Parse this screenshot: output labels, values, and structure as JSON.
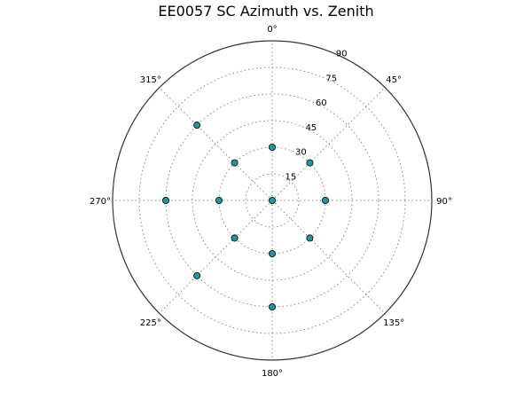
{
  "chart_data": {
    "type": "scatter",
    "projection": "polar",
    "title": "EE0057 SC Azimuth vs. Zenith",
    "theta_direction": "clockwise",
    "theta_zero": "top",
    "theta_ticks": [
      0,
      45,
      90,
      135,
      180,
      225,
      270,
      315
    ],
    "theta_tick_labels": [
      "0°",
      "45°",
      "90°",
      "135°",
      "180°",
      "225°",
      "270°",
      "315°"
    ],
    "r_ticks": [
      15,
      30,
      45,
      60,
      75,
      90
    ],
    "r_tick_labels": [
      "15",
      "30",
      "45",
      "60",
      "75",
      "90"
    ],
    "rlim": [
      0,
      90
    ],
    "grid": true,
    "marker_color": "#1a9a9a",
    "points": [
      {
        "azimuth": 0,
        "zenith": 0
      },
      {
        "azimuth": 0,
        "zenith": 30
      },
      {
        "azimuth": 45,
        "zenith": 30
      },
      {
        "azimuth": 90,
        "zenith": 30
      },
      {
        "azimuth": 135,
        "zenith": 30
      },
      {
        "azimuth": 180,
        "zenith": 30
      },
      {
        "azimuth": 225,
        "zenith": 30
      },
      {
        "azimuth": 270,
        "zenith": 30
      },
      {
        "azimuth": 315,
        "zenith": 30
      },
      {
        "azimuth": 180,
        "zenith": 60
      },
      {
        "azimuth": 225,
        "zenith": 60
      },
      {
        "azimuth": 270,
        "zenith": 60
      },
      {
        "azimuth": 315,
        "zenith": 60
      }
    ]
  }
}
